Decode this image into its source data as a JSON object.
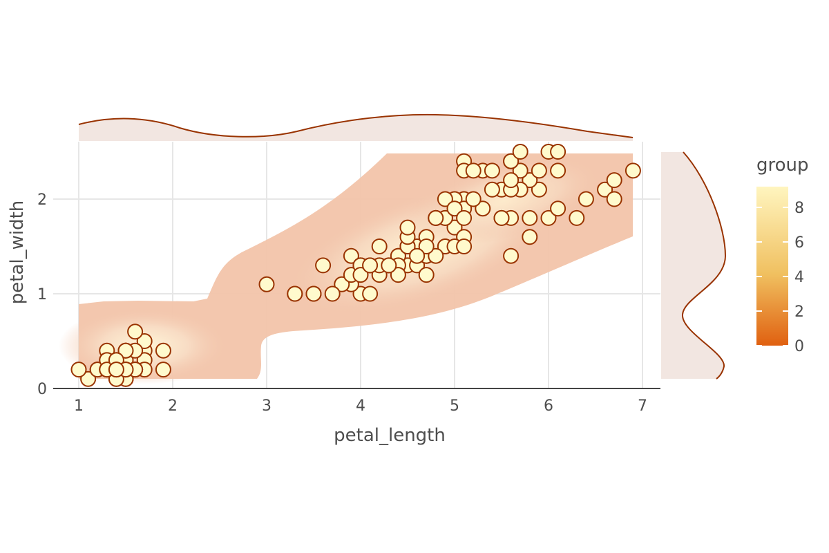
{
  "chart_data": {
    "type": "scatter",
    "xlabel": "petal_length",
    "ylabel": "petal_width",
    "xlim": [
      0.75,
      7.2
    ],
    "ylim": [
      0,
      2.6
    ],
    "x_ticks": [
      1,
      2,
      3,
      4,
      5,
      6,
      7
    ],
    "y_ticks": [
      0,
      1,
      2
    ],
    "grid": true,
    "point_color": "#fffacd",
    "point_outline": "#993300",
    "marginal_color": "#993300",
    "marginal_fill": "#f2e6e1",
    "legend": {
      "title": "group",
      "placement": "right",
      "ticks": [
        0,
        2,
        4,
        6,
        8
      ],
      "range": [
        0,
        9.2
      ],
      "color_low": "#e06010",
      "color_mid": "#f0c060",
      "color_high": "#fff5bf"
    },
    "points": [
      [
        1.4,
        0.2
      ],
      [
        1.4,
        0.2
      ],
      [
        1.3,
        0.2
      ],
      [
        1.5,
        0.2
      ],
      [
        1.4,
        0.2
      ],
      [
        1.7,
        0.4
      ],
      [
        1.4,
        0.3
      ],
      [
        1.5,
        0.2
      ],
      [
        1.4,
        0.2
      ],
      [
        1.5,
        0.1
      ],
      [
        1.5,
        0.2
      ],
      [
        1.6,
        0.2
      ],
      [
        1.4,
        0.1
      ],
      [
        1.1,
        0.1
      ],
      [
        1.2,
        0.2
      ],
      [
        1.5,
        0.4
      ],
      [
        1.3,
        0.4
      ],
      [
        1.4,
        0.3
      ],
      [
        1.7,
        0.3
      ],
      [
        1.5,
        0.3
      ],
      [
        1.7,
        0.2
      ],
      [
        1.5,
        0.4
      ],
      [
        1.0,
        0.2
      ],
      [
        1.7,
        0.5
      ],
      [
        1.9,
        0.2
      ],
      [
        1.6,
        0.2
      ],
      [
        1.6,
        0.4
      ],
      [
        1.5,
        0.2
      ],
      [
        1.4,
        0.2
      ],
      [
        1.6,
        0.2
      ],
      [
        1.6,
        0.2
      ],
      [
        1.5,
        0.4
      ],
      [
        1.5,
        0.1
      ],
      [
        1.4,
        0.2
      ],
      [
        1.5,
        0.2
      ],
      [
        1.2,
        0.2
      ],
      [
        1.3,
        0.2
      ],
      [
        1.4,
        0.1
      ],
      [
        1.3,
        0.2
      ],
      [
        1.5,
        0.2
      ],
      [
        1.3,
        0.3
      ],
      [
        1.3,
        0.3
      ],
      [
        1.3,
        0.2
      ],
      [
        1.6,
        0.6
      ],
      [
        1.9,
        0.4
      ],
      [
        1.4,
        0.3
      ],
      [
        1.6,
        0.2
      ],
      [
        1.4,
        0.2
      ],
      [
        1.5,
        0.2
      ],
      [
        1.4,
        0.2
      ],
      [
        4.7,
        1.4
      ],
      [
        4.5,
        1.5
      ],
      [
        4.9,
        1.5
      ],
      [
        4.0,
        1.3
      ],
      [
        4.6,
        1.5
      ],
      [
        4.5,
        1.3
      ],
      [
        4.7,
        1.6
      ],
      [
        3.3,
        1.0
      ],
      [
        4.6,
        1.3
      ],
      [
        3.9,
        1.4
      ],
      [
        3.5,
        1.0
      ],
      [
        4.2,
        1.5
      ],
      [
        4.0,
        1.0
      ],
      [
        4.7,
        1.4
      ],
      [
        3.6,
        1.3
      ],
      [
        4.4,
        1.4
      ],
      [
        4.5,
        1.5
      ],
      [
        4.1,
        1.0
      ],
      [
        4.5,
        1.5
      ],
      [
        3.9,
        1.1
      ],
      [
        4.8,
        1.8
      ],
      [
        4.0,
        1.3
      ],
      [
        4.9,
        1.5
      ],
      [
        4.7,
        1.2
      ],
      [
        4.3,
        1.3
      ],
      [
        4.4,
        1.4
      ],
      [
        4.8,
        1.4
      ],
      [
        5.0,
        1.7
      ],
      [
        4.5,
        1.5
      ],
      [
        3.5,
        1.0
      ],
      [
        3.8,
        1.1
      ],
      [
        3.7,
        1.0
      ],
      [
        3.9,
        1.2
      ],
      [
        5.1,
        1.6
      ],
      [
        4.5,
        1.5
      ],
      [
        4.5,
        1.6
      ],
      [
        4.7,
        1.5
      ],
      [
        4.4,
        1.3
      ],
      [
        4.1,
        1.3
      ],
      [
        4.0,
        1.3
      ],
      [
        4.4,
        1.2
      ],
      [
        4.6,
        1.4
      ],
      [
        4.0,
        1.2
      ],
      [
        3.3,
        1.0
      ],
      [
        4.2,
        1.3
      ],
      [
        4.2,
        1.2
      ],
      [
        4.2,
        1.3
      ],
      [
        4.3,
        1.3
      ],
      [
        3.0,
        1.1
      ],
      [
        4.1,
        1.3
      ],
      [
        6.0,
        2.5
      ],
      [
        5.1,
        1.9
      ],
      [
        5.9,
        2.1
      ],
      [
        5.6,
        1.8
      ],
      [
        5.8,
        2.2
      ],
      [
        6.6,
        2.1
      ],
      [
        4.5,
        1.7
      ],
      [
        6.3,
        1.8
      ],
      [
        5.8,
        1.8
      ],
      [
        6.1,
        2.5
      ],
      [
        5.1,
        2.0
      ],
      [
        5.3,
        1.9
      ],
      [
        5.5,
        2.1
      ],
      [
        5.0,
        2.0
      ],
      [
        5.1,
        2.4
      ],
      [
        5.3,
        2.3
      ],
      [
        5.5,
        1.8
      ],
      [
        6.7,
        2.2
      ],
      [
        6.9,
        2.3
      ],
      [
        5.0,
        1.5
      ],
      [
        5.7,
        2.3
      ],
      [
        4.9,
        2.0
      ],
      [
        6.7,
        2.0
      ],
      [
        4.9,
        1.8
      ],
      [
        5.7,
        2.1
      ],
      [
        6.0,
        1.8
      ],
      [
        4.8,
        1.8
      ],
      [
        4.9,
        1.8
      ],
      [
        5.6,
        2.1
      ],
      [
        5.8,
        1.6
      ],
      [
        6.1,
        1.9
      ],
      [
        6.4,
        2.0
      ],
      [
        5.6,
        2.2
      ],
      [
        5.1,
        1.5
      ],
      [
        5.6,
        1.4
      ],
      [
        6.1,
        2.3
      ],
      [
        5.6,
        2.4
      ],
      [
        5.5,
        1.8
      ],
      [
        4.8,
        1.8
      ],
      [
        5.4,
        2.1
      ],
      [
        5.6,
        2.4
      ],
      [
        5.1,
        2.3
      ],
      [
        5.1,
        1.9
      ],
      [
        5.9,
        2.3
      ],
      [
        5.7,
        2.5
      ],
      [
        5.2,
        2.3
      ],
      [
        5.0,
        1.9
      ],
      [
        5.2,
        2.0
      ],
      [
        5.4,
        2.3
      ],
      [
        5.1,
        1.8
      ]
    ]
  }
}
